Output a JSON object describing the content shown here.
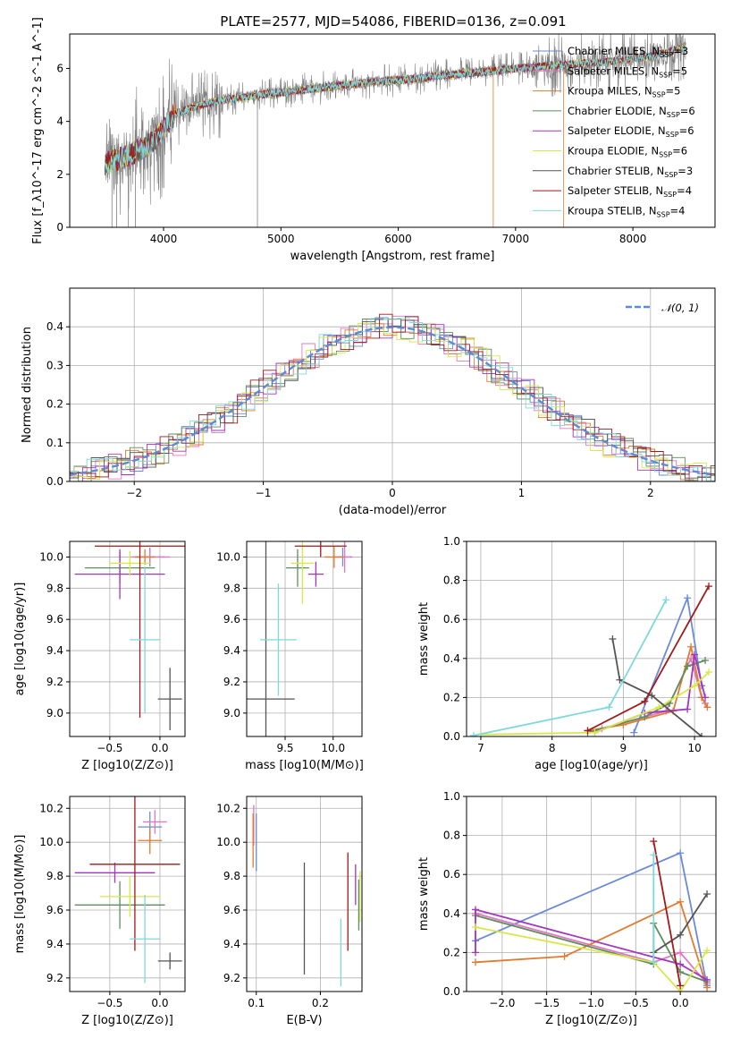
{
  "figure": {
    "title": "PLATE=2577, MJD=54086, FIBERID=0136, z=0.091"
  },
  "models": [
    {
      "name": "Chabrier MILES",
      "nssp": 3,
      "color": "#6a8bd8"
    },
    {
      "name": "Salpeter MILES",
      "nssp": 5,
      "color": "#e377c2"
    },
    {
      "name": "Kroupa MILES",
      "nssp": 5,
      "color": "#e07b2f"
    },
    {
      "name": "Chabrier ELODIE",
      "nssp": 6,
      "color": "#5e8d5e"
    },
    {
      "name": "Salpeter ELODIE",
      "nssp": 6,
      "color": "#a335c0"
    },
    {
      "name": "Kroupa ELODIE",
      "nssp": 6,
      "color": "#d7e84a"
    },
    {
      "name": "Chabrier STELIB",
      "nssp": 3,
      "color": "#555555"
    },
    {
      "name": "Salpeter STELIB",
      "nssp": 4,
      "color": "#a01a1a"
    },
    {
      "name": "Kroupa STELIB",
      "nssp": 4,
      "color": "#7fd8dc"
    }
  ],
  "chart_data": [
    {
      "id": "spectrum",
      "type": "line",
      "xlabel": "wavelength [Angstrom, rest frame]",
      "ylabel": "Flux [f_λ10^-17 erg cm^-2 s^-1 A^-1]",
      "xlim": [
        3200,
        8700
      ],
      "ylim": [
        0,
        7.3
      ],
      "xticks": [
        4000,
        5000,
        6000,
        7000,
        8000
      ],
      "yticks": [
        0,
        2,
        4,
        6
      ],
      "data_color": "#808080",
      "continuum": {
        "x": [
          3500,
          3700,
          3900,
          4000,
          4100,
          4300,
          4500,
          4800,
          5000,
          5200,
          5500,
          5800,
          6100,
          6400,
          6700,
          7000,
          7300,
          7600,
          7900,
          8200,
          8450
        ],
        "y": [
          2.4,
          2.7,
          3.2,
          3.7,
          4.3,
          4.6,
          4.8,
          5.0,
          5.1,
          5.2,
          5.35,
          5.5,
          5.6,
          5.75,
          5.85,
          6.0,
          6.1,
          6.2,
          6.3,
          6.5,
          6.8
        ]
      }
    },
    {
      "id": "residuals",
      "type": "area",
      "xlabel": "(data-model)/error",
      "ylabel": "Normed distribution",
      "xlim": [
        -2.5,
        2.5
      ],
      "ylim": [
        0,
        0.5
      ],
      "xticks": [
        -2,
        -1,
        0,
        1,
        2
      ],
      "yticks": [
        0.0,
        0.1,
        0.2,
        0.3,
        0.4
      ],
      "legend": "𝒩(0, 1)",
      "bin_width": 0.1
    },
    {
      "id": "Z-age",
      "type": "scatter",
      "xlabel": "Z [log10(Z/Z⊙)]",
      "ylabel": "age  [log10(age/yr)]",
      "xlim": [
        -0.9,
        0.25
      ],
      "ylim": [
        8.85,
        10.1
      ],
      "xticks": [
        -0.5,
        0.0
      ],
      "yticks": [
        9.0,
        9.2,
        9.4,
        9.6,
        9.8,
        10.0
      ],
      "points": [
        {
          "x": -0.1,
          "xerr": 0.15,
          "y": 10.0,
          "yerr": 0.06
        },
        {
          "x": -0.1,
          "xerr": 0.2,
          "y": 10.0,
          "yerr": 0.04
        },
        {
          "x": -0.15,
          "xerr": 0.1,
          "y": 10.0,
          "yerr": 0.05
        },
        {
          "x": -0.4,
          "xerr": 0.35,
          "y": 9.93,
          "yerr": 0.1
        },
        {
          "x": -0.4,
          "xerr": 0.45,
          "y": 9.89,
          "yerr": 0.16
        },
        {
          "x": -0.3,
          "xerr": 0.2,
          "y": 9.96,
          "yerr": 0.08
        },
        {
          "x": 0.1,
          "xerr": 0.12,
          "y": 9.09,
          "yerr": 0.2
        },
        {
          "x": -0.2,
          "xerr": 0.45,
          "y": 10.07,
          "yerr": 1.1
        },
        {
          "x": -0.15,
          "xerr": 0.15,
          "y": 9.47,
          "yerr": 0.47
        }
      ]
    },
    {
      "id": "mass-age",
      "type": "scatter",
      "xlabel": "mass [log10(M/M⊙)]",
      "ylabel": "",
      "xlim": [
        9.1,
        10.3
      ],
      "ylim": [
        8.85,
        10.1
      ],
      "xticks": [
        9.5,
        10.0
      ],
      "yticks": [
        9.0,
        9.2,
        9.4,
        9.6,
        9.8,
        10.0
      ],
      "points": [
        {
          "x": 10.1,
          "xerr": 0.1,
          "y": 10.0,
          "yerr": 0.06
        },
        {
          "x": 10.12,
          "xerr": 0.08,
          "y": 10.0,
          "yerr": 0.1
        },
        {
          "x": 10.01,
          "xerr": 0.1,
          "y": 10.0,
          "yerr": 0.07
        },
        {
          "x": 9.63,
          "xerr": 0.12,
          "y": 9.93,
          "yerr": 0.12
        },
        {
          "x": 9.82,
          "xerr": 0.08,
          "y": 9.89,
          "yerr": 0.08
        },
        {
          "x": 9.68,
          "xerr": 0.12,
          "y": 9.96,
          "yerr": 0.26
        },
        {
          "x": 9.3,
          "xerr": 0.3,
          "y": 9.09,
          "yerr": 1.05
        },
        {
          "x": 9.87,
          "xerr": 0.27,
          "y": 10.07,
          "yerr": 0.07
        },
        {
          "x": 9.43,
          "xerr": 0.19,
          "y": 9.47,
          "yerr": 0.36
        }
      ]
    },
    {
      "id": "age-weight",
      "type": "line",
      "xlabel": "age  [log10(age/yr)]",
      "ylabel": "mass weight",
      "xlim": [
        6.8,
        10.3
      ],
      "ylim": [
        0,
        1.0
      ],
      "xticks": [
        7,
        8,
        9,
        10
      ],
      "yticks": [
        0.0,
        0.2,
        0.4,
        0.6,
        0.8,
        1.0
      ],
      "series": [
        {
          "x": [
            9.15,
            9.9,
            10.1
          ],
          "y": [
            0.02,
            0.71,
            0.26
          ]
        },
        {
          "x": [
            8.7,
            9.6,
            9.95,
            10.1,
            10.15
          ],
          "y": [
            0.04,
            0.13,
            0.4,
            0.2,
            0.17
          ]
        },
        {
          "x": [
            8.5,
            9.0,
            9.7,
            9.95,
            10.1,
            10.18
          ],
          "y": [
            0.03,
            0.06,
            0.13,
            0.46,
            0.2,
            0.15
          ]
        },
        {
          "x": [
            8.5,
            9.3,
            9.65,
            9.9,
            10.15
          ],
          "y": [
            0.02,
            0.1,
            0.17,
            0.36,
            0.39
          ]
        },
        {
          "x": [
            8.6,
            9.3,
            9.9,
            10.0,
            10.15
          ],
          "y": [
            0.02,
            0.12,
            0.14,
            0.42,
            0.2
          ]
        },
        {
          "x": [
            7.0,
            8.6,
            9.5,
            10.0,
            10.2
          ],
          "y": [
            0.01,
            0.02,
            0.15,
            0.26,
            0.33
          ]
        },
        {
          "x": [
            8.85,
            8.95,
            9.4,
            10.1
          ],
          "y": [
            0.5,
            0.29,
            0.21,
            0.0
          ]
        },
        {
          "x": [
            8.5,
            9.3,
            10.2
          ],
          "y": [
            0.03,
            0.18,
            0.77
          ]
        },
        {
          "x": [
            6.9,
            8.8,
            9.6
          ],
          "y": [
            0.005,
            0.15,
            0.7
          ]
        }
      ]
    },
    {
      "id": "Z-mass",
      "type": "scatter",
      "xlabel": "Z [log10(Z/Z⊙)]",
      "ylabel": "mass [log10(M/M⊙)]",
      "xlim": [
        -0.9,
        0.25
      ],
      "ylim": [
        9.12,
        10.27
      ],
      "xticks": [
        -0.5,
        0.0
      ],
      "yticks": [
        9.2,
        9.4,
        9.6,
        9.8,
        10.0,
        10.2
      ],
      "points": [
        {
          "x": -0.1,
          "xerr": 0.12,
          "y": 10.09,
          "yerr": 0.09
        },
        {
          "x": -0.05,
          "xerr": 0.12,
          "y": 10.12,
          "yerr": 0.07
        },
        {
          "x": -0.1,
          "xerr": 0.12,
          "y": 10.01,
          "yerr": 0.08
        },
        {
          "x": -0.4,
          "xerr": 0.45,
          "y": 9.63,
          "yerr": 0.14
        },
        {
          "x": -0.45,
          "xerr": 0.4,
          "y": 9.82,
          "yerr": 0.06
        },
        {
          "x": -0.3,
          "xerr": 0.3,
          "y": 9.68,
          "yerr": 0.12
        },
        {
          "x": 0.1,
          "xerr": 0.12,
          "y": 9.3,
          "yerr": 0.05
        },
        {
          "x": -0.25,
          "xerr": 0.45,
          "y": 9.87,
          "yerr": 0.51
        },
        {
          "x": -0.15,
          "xerr": 0.15,
          "y": 9.43,
          "yerr": 0.26
        }
      ]
    },
    {
      "id": "ebv-mass",
      "type": "scatter",
      "xlabel": "E(B-V)",
      "ylabel": "",
      "xlim": [
        0.085,
        0.265
      ],
      "ylim": [
        9.12,
        10.27
      ],
      "xticks": [
        0.1,
        0.2
      ],
      "yticks": [
        9.2,
        9.4,
        9.6,
        9.8,
        10.0,
        10.2
      ],
      "points": [
        {
          "x": 0.1,
          "y": 10.0,
          "yerr": 0.17
        },
        {
          "x": 0.096,
          "y": 10.1,
          "yerr": 0.12
        },
        {
          "x": 0.095,
          "y": 10.01,
          "yerr": 0.16
        },
        {
          "x": 0.26,
          "y": 9.63,
          "yerr": 0.15
        },
        {
          "x": 0.255,
          "y": 9.75,
          "yerr": 0.12
        },
        {
          "x": 0.262,
          "y": 9.68,
          "yerr": 0.15
        },
        {
          "x": 0.175,
          "y": 9.55,
          "yerr": 0.33
        },
        {
          "x": 0.243,
          "y": 9.65,
          "yerr": 0.29
        },
        {
          "x": 0.232,
          "y": 9.35,
          "yerr": 0.2
        }
      ]
    },
    {
      "id": "Z-weight",
      "type": "line",
      "xlabel": "Z [log10(Z/Z⊙)]",
      "ylabel": "mass weight",
      "xlim": [
        -2.4,
        0.4
      ],
      "ylim": [
        0,
        1.0
      ],
      "xticks": [
        -2.0,
        -1.5,
        -1.0,
        -0.5,
        0.0
      ],
      "yticks": [
        0.0,
        0.2,
        0.4,
        0.6,
        0.8,
        1.0
      ],
      "series": [
        {
          "x": [
            -2.3,
            0.0,
            0.3
          ],
          "y": [
            0.26,
            0.71,
            0.03
          ]
        },
        {
          "x": [
            -2.3,
            -0.3,
            0.0,
            0.3
          ],
          "y": [
            0.4,
            0.15,
            0.2,
            0.04
          ]
        },
        {
          "x": [
            -2.3,
            -1.3,
            0.0,
            0.3
          ],
          "y": [
            0.15,
            0.18,
            0.46,
            0.02
          ]
        },
        {
          "x": [
            -2.3,
            -0.3,
            -0.3,
            0.0,
            0.3
          ],
          "y": [
            0.39,
            0.14,
            0.35,
            0.1,
            0.05
          ]
        },
        {
          "x": [
            -2.3,
            -2.3,
            0.0,
            0.3
          ],
          "y": [
            0.2,
            0.42,
            0.14,
            0.06
          ]
        },
        {
          "x": [
            -2.3,
            -0.3,
            0.0,
            0.3
          ],
          "y": [
            0.33,
            0.15,
            0.0,
            0.21
          ]
        },
        {
          "x": [
            -0.3,
            0.0,
            0.3
          ],
          "y": [
            0.2,
            0.29,
            0.5
          ]
        },
        {
          "x": [
            -0.3,
            0.0
          ],
          "y": [
            0.77,
            0.03
          ]
        },
        {
          "x": [
            -0.3,
            -0.3
          ],
          "y": [
            0.7,
            0.15
          ]
        }
      ]
    }
  ]
}
